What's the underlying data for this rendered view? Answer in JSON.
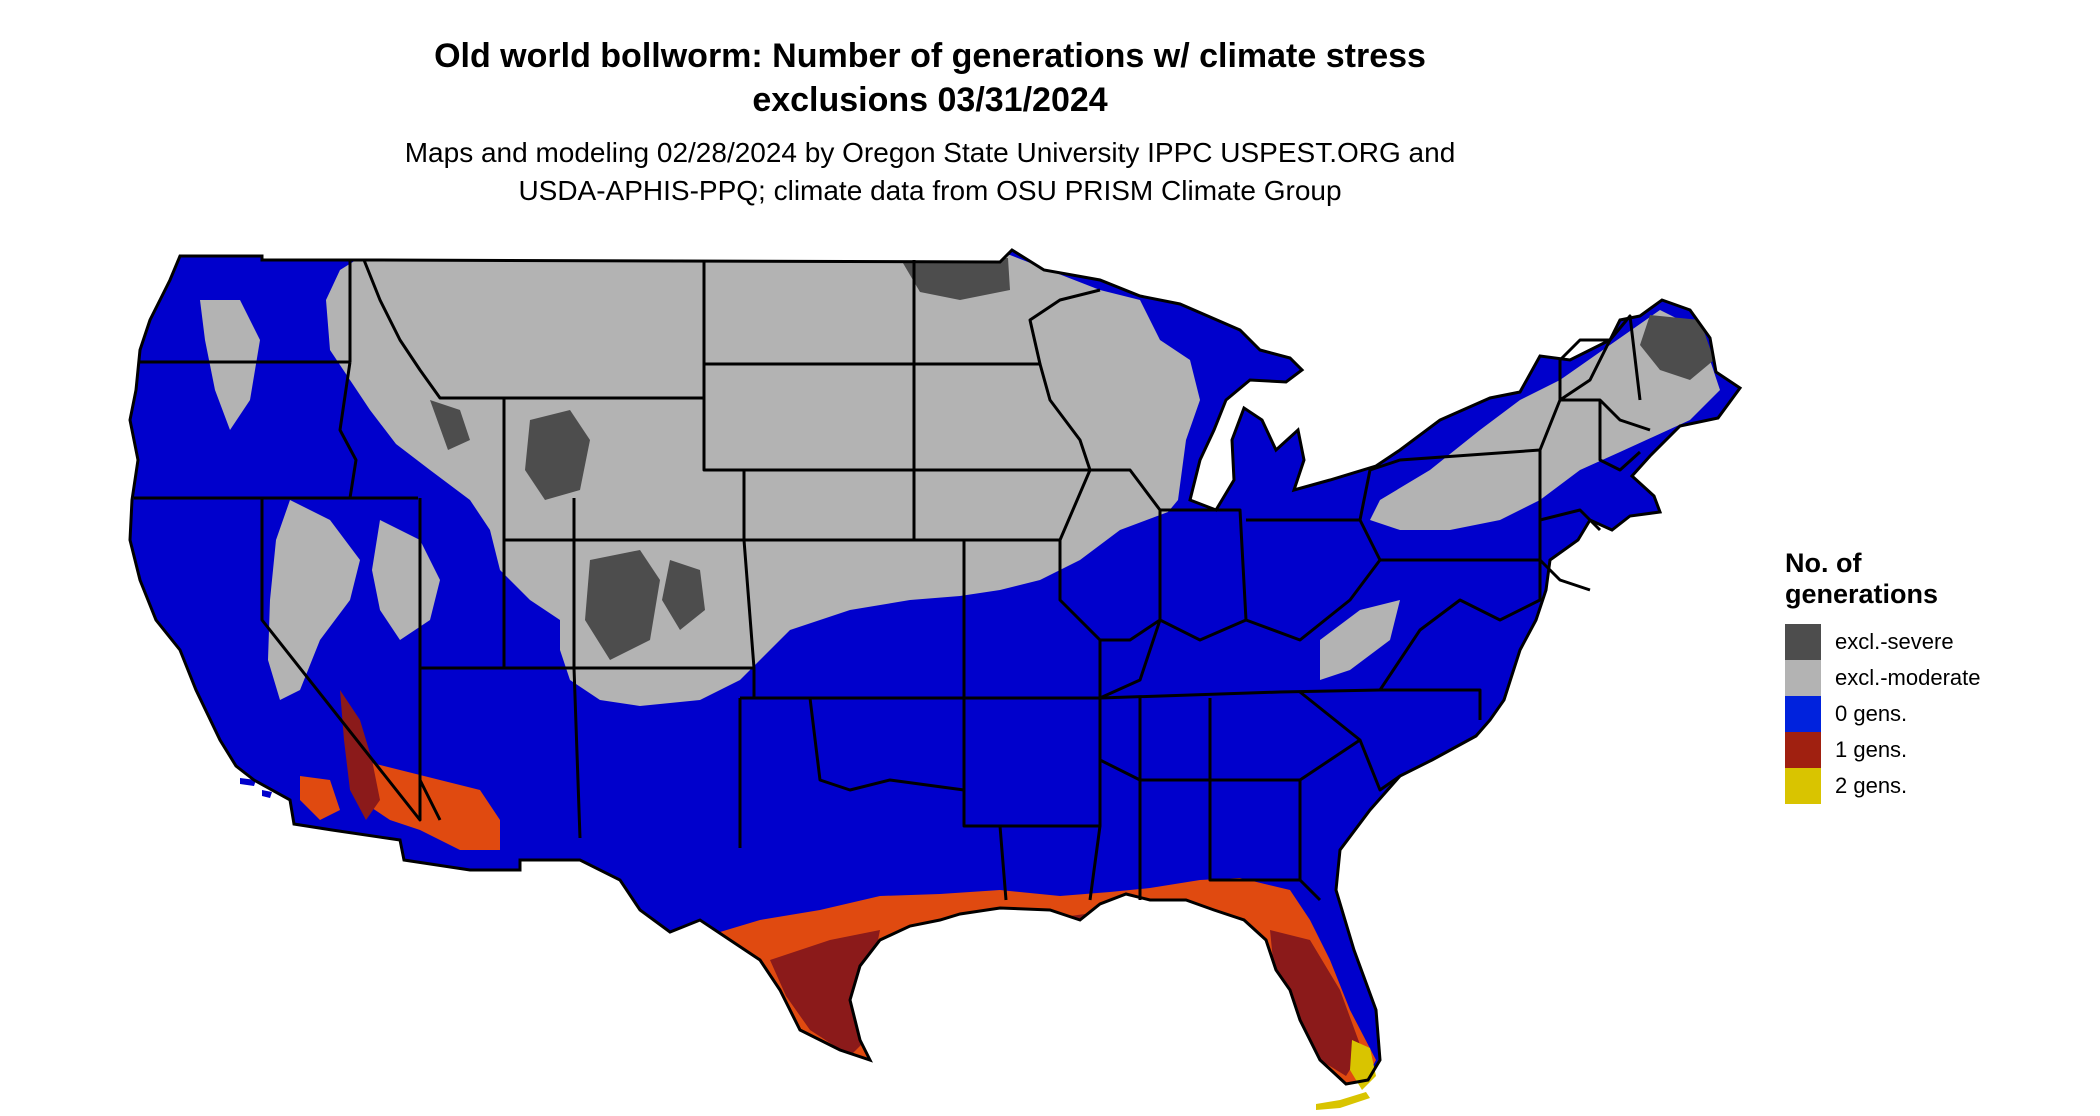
{
  "map": {
    "title_line1": "Old world bollworm: Number of generations w/ climate stress",
    "title_line2": "exclusions 03/31/2024",
    "subtitle_line1": "Maps and modeling 02/28/2024 by Oregon State University IPPC USPEST.ORG and",
    "subtitle_line2": "USDA-APHIS-PPQ; climate data from OSU PRISM Climate Group",
    "region": "conterminous-united-states"
  },
  "legend": {
    "title_line1": "No. of",
    "title_line2": "generations",
    "items": [
      {
        "label": "excl.-severe",
        "color": "#4d4d4d"
      },
      {
        "label": "excl.-moderate",
        "color": "#b3b3b3"
      },
      {
        "label": "0 gens.",
        "color": "#0022dd"
      },
      {
        "label": "1 gens.",
        "color": "#a02010"
      },
      {
        "label": "2 gens.",
        "color": "#d9c400"
      }
    ]
  },
  "colors": {
    "excl_severe": "#4d4d4d",
    "excl_moderate": "#b3b3b3",
    "gens_0": "#0000cc",
    "gens_1_dark": "#8b1a1a",
    "gens_1_bright": "#e04a10",
    "gens_2": "#d9c400",
    "state_border": "#000000"
  }
}
